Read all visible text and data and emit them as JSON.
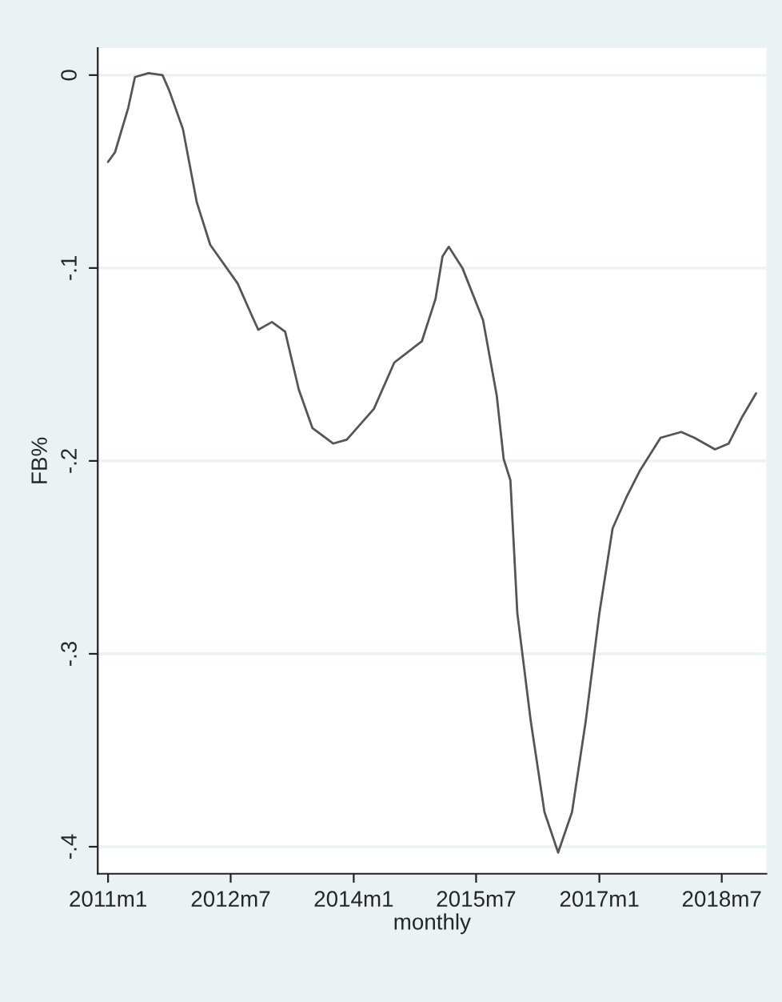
{
  "chart_data": {
    "type": "line",
    "xlabel": "monthly",
    "ylabel": "FB%",
    "x": [
      "2011-01",
      "2011-02",
      "2011-04",
      "2011-05",
      "2011-07",
      "2011-09",
      "2011-10",
      "2011-12",
      "2012-02",
      "2012-04",
      "2012-08",
      "2012-10",
      "2012-11",
      "2013-01",
      "2013-03",
      "2013-05",
      "2013-07",
      "2013-10",
      "2013-12",
      "2014-04",
      "2014-07",
      "2014-11",
      "2015-01",
      "2015-02",
      "2015-03",
      "2015-05",
      "2015-08",
      "2015-10",
      "2015-11",
      "2015-12",
      "2016-01",
      "2016-03",
      "2016-05",
      "2016-07",
      "2016-09",
      "2016-11",
      "2017-01",
      "2017-03",
      "2017-05",
      "2017-07",
      "2017-10",
      "2018-01",
      "2018-03",
      "2018-06",
      "2018-08",
      "2018-10",
      "2018-12"
    ],
    "series": [
      {
        "color": "#555555",
        "values": [
          -0.045,
          -0.04,
          -0.017,
          -0.001,
          0.001,
          0.0,
          -0.008,
          -0.028,
          -0.066,
          -0.088,
          -0.108,
          -0.124,
          -0.132,
          -0.128,
          -0.133,
          -0.163,
          -0.183,
          -0.191,
          -0.189,
          -0.173,
          -0.149,
          -0.138,
          -0.116,
          -0.094,
          -0.089,
          -0.1,
          -0.127,
          -0.166,
          -0.199,
          -0.21,
          -0.279,
          -0.335,
          -0.382,
          -0.403,
          -0.382,
          -0.335,
          -0.279,
          -0.235,
          -0.219,
          -0.205,
          -0.188,
          -0.185,
          -0.188,
          -0.194,
          -0.191,
          -0.177,
          -0.165
        ]
      }
    ],
    "xlim": [
      "2010-11-16",
      "2019-01-16"
    ],
    "xticks": [
      {
        "value": "2011-01",
        "label": "2011m1"
      },
      {
        "value": "2012-07",
        "label": "2012m7"
      },
      {
        "value": "2014-01",
        "label": "2014m1"
      },
      {
        "value": "2015-07",
        "label": "2015m7"
      },
      {
        "value": "2017-01",
        "label": "2017m1"
      },
      {
        "value": "2018-07",
        "label": "2018m7"
      }
    ],
    "ylim": [
      -0.414,
      0.014
    ],
    "yticks": [
      {
        "value": 0,
        "label": "0"
      },
      {
        "value": -0.1,
        "label": "-.1"
      },
      {
        "value": -0.2,
        "label": "-.2"
      },
      {
        "value": -0.3,
        "label": "-.3"
      },
      {
        "value": -0.4,
        "label": "-.4"
      }
    ],
    "grid": "y"
  }
}
